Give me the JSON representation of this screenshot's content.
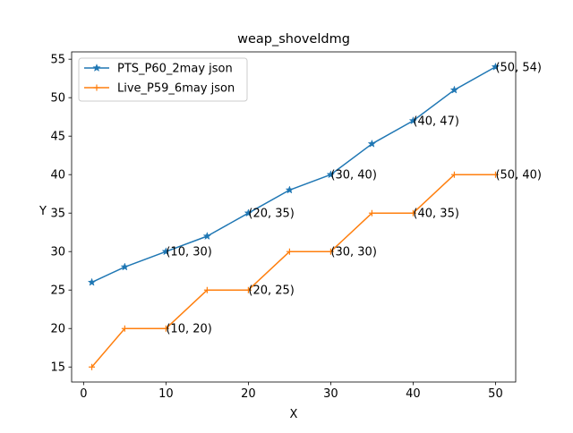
{
  "chart_data": {
    "type": "line",
    "title": "weap_shoveldmg",
    "xlabel": "X",
    "ylabel": "Y",
    "xlim": [
      -1.45,
      52.45
    ],
    "ylim": [
      13.05,
      55.95
    ],
    "xticks": [
      0,
      10,
      20,
      30,
      40,
      50
    ],
    "yticks": [
      15,
      20,
      25,
      30,
      35,
      40,
      45,
      50,
      55
    ],
    "grid": false,
    "legend_position": "upper-left",
    "series": [
      {
        "name": "PTS_P60_2may json",
        "color": "#1f77b4",
        "marker": "star",
        "x": [
          1,
          5,
          10,
          15,
          20,
          25,
          30,
          35,
          40,
          45,
          50
        ],
        "y": [
          26,
          28,
          30,
          32,
          35,
          38,
          40,
          44,
          47,
          51,
          54
        ]
      },
      {
        "name": "Live_P59_6may json",
        "color": "#ff7f0e",
        "marker": "plus",
        "x": [
          1,
          5,
          10,
          15,
          20,
          25,
          30,
          35,
          40,
          45,
          50
        ],
        "y": [
          15,
          20,
          20,
          25,
          25,
          30,
          30,
          35,
          35,
          40,
          40
        ]
      }
    ],
    "annotations": [
      {
        "text": "(10, 30)",
        "x": 10,
        "y": 30
      },
      {
        "text": "(20, 35)",
        "x": 20,
        "y": 35
      },
      {
        "text": "(30, 40)",
        "x": 30,
        "y": 40
      },
      {
        "text": "(40, 47)",
        "x": 40,
        "y": 47
      },
      {
        "text": "(50, 54)",
        "x": 50,
        "y": 54
      },
      {
        "text": "(10, 20)",
        "x": 10,
        "y": 20
      },
      {
        "text": "(20, 25)",
        "x": 20,
        "y": 25
      },
      {
        "text": "(30, 30)",
        "x": 30,
        "y": 30
      },
      {
        "text": "(40, 35)",
        "x": 40,
        "y": 35
      },
      {
        "text": "(50, 40)",
        "x": 50,
        "y": 40
      }
    ]
  }
}
